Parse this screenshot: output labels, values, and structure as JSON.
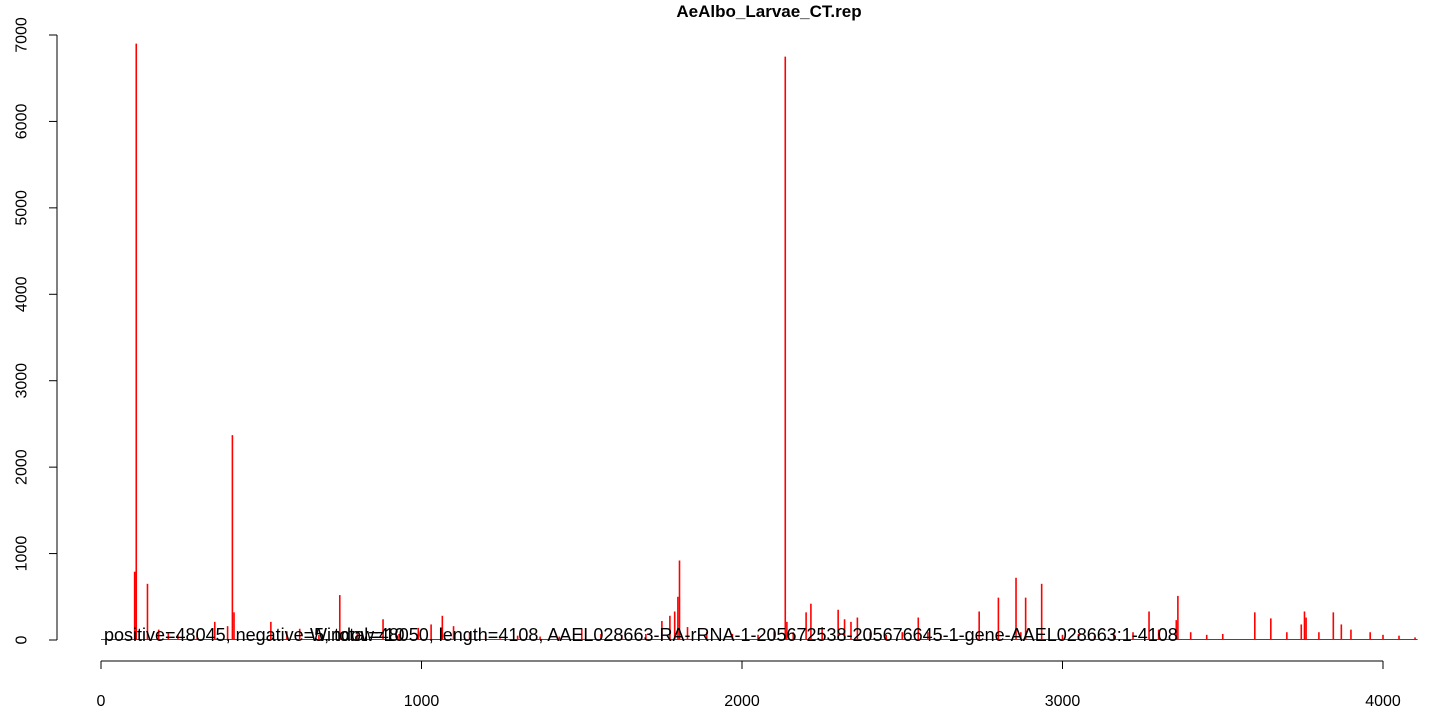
{
  "chart_data": {
    "type": "bar",
    "title": "AeAlbo_Larvae_CT.rep",
    "xlabel": "",
    "ylabel": "",
    "xlim": [
      0,
      4108
    ],
    "ylim": [
      0,
      7000
    ],
    "grid": false,
    "bar_color": "#ff0000",
    "x_ticks": [
      "0",
      "1000",
      "2000",
      "3000",
      "4000"
    ],
    "y_ticks": [
      "0",
      "1000",
      "2000",
      "3000",
      "4000",
      "5000",
      "6000",
      "7000"
    ],
    "annotations": [
      "positive=48045, negative=5, total=48050, length=4108, AAEL028663-RA-rRNA-1-205672538-205676645-1-gene-AAEL028663:1-4108",
      "Window=10"
    ],
    "x": [
      105,
      110,
      145,
      180,
      210,
      240,
      300,
      355,
      395,
      410,
      415,
      530,
      580,
      620,
      680,
      745,
      800,
      880,
      930,
      990,
      1030,
      1065,
      1100,
      1150,
      1200,
      1245,
      1300,
      1370,
      1430,
      1500,
      1560,
      1625,
      1700,
      1750,
      1775,
      1790,
      1800,
      1805,
      1830,
      1890,
      1970,
      2050,
      2100,
      2135,
      2140,
      2160,
      2200,
      2215,
      2250,
      2300,
      2320,
      2340,
      2360,
      2400,
      2450,
      2500,
      2550,
      2580,
      2620,
      2700,
      2740,
      2800,
      2855,
      2870,
      2885,
      2935,
      3000,
      3050,
      3100,
      3160,
      3220,
      3270,
      3300,
      3355,
      3360,
      3400,
      3450,
      3500,
      3600,
      3650,
      3700,
      3745,
      3755,
      3760,
      3800,
      3845,
      3870,
      3900,
      3960,
      4000,
      4050,
      4100
    ],
    "values": [
      790,
      6900,
      650,
      120,
      80,
      60,
      90,
      210,
      160,
      2370,
      320,
      210,
      100,
      130,
      60,
      520,
      90,
      240,
      70,
      140,
      180,
      280,
      160,
      90,
      60,
      20,
      50,
      40,
      40,
      130,
      70,
      60,
      70,
      220,
      280,
      330,
      500,
      920,
      150,
      90,
      70,
      60,
      100,
      6750,
      210,
      90,
      320,
      420,
      150,
      350,
      240,
      210,
      260,
      90,
      60,
      90,
      260,
      90,
      70,
      90,
      330,
      490,
      720,
      90,
      490,
      650,
      60,
      70,
      50,
      90,
      90,
      330,
      120,
      230,
      510,
      90,
      60,
      70,
      320,
      250,
      90,
      180,
      330,
      260,
      90,
      320,
      180,
      120,
      90,
      60,
      50,
      30
    ]
  }
}
